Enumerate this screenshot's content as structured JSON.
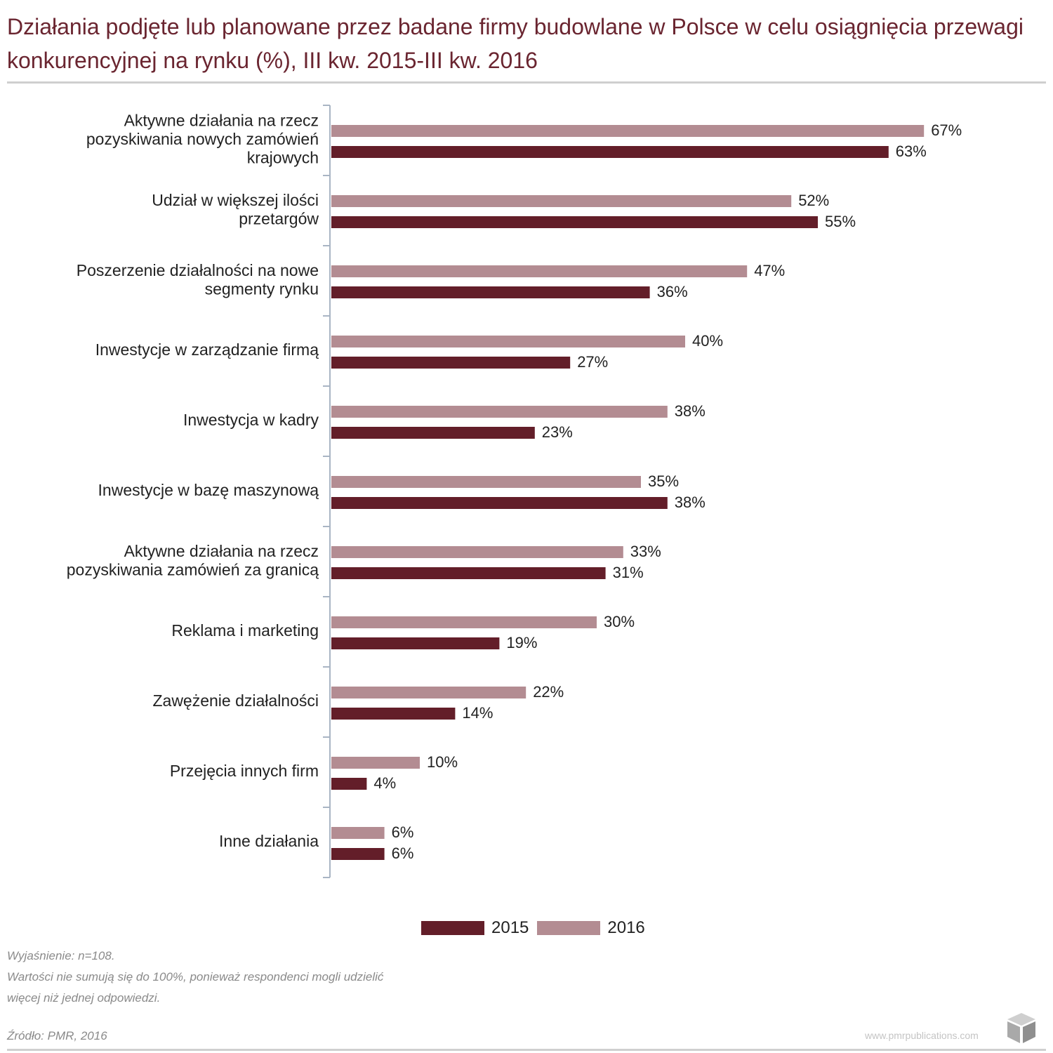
{
  "title": "Działania podjęte lub planowane przez badane firmy budowlane w Polsce w celu osiągnięcia przewagi konkurencyjnej na rynku (%), III kw. 2015-III kw. 2016",
  "colors": {
    "series_2015": "#631e29",
    "series_2016": "#b38c92",
    "title": "#6a2530",
    "axis": "#a9b5c4"
  },
  "chart_data": {
    "type": "bar",
    "orientation": "horizontal",
    "categories": [
      [
        "Aktywne działania na rzecz",
        "pozyskiwania nowych zamówień",
        "krajowych"
      ],
      [
        "Udział w większej ilości",
        "przetargów"
      ],
      [
        "Poszerzenie działalności na nowe",
        "segmenty rynku"
      ],
      [
        "Inwestycje w zarządzanie firmą"
      ],
      [
        "Inwestycja w kadry"
      ],
      [
        "Inwestycje w bazę maszynową"
      ],
      [
        "Aktywne działania na rzecz",
        "pozyskiwania zamówień za granicą"
      ],
      [
        "Reklama i marketing"
      ],
      [
        "Zawężenie działalności"
      ],
      [
        "Przejęcia innych firm"
      ],
      [
        "Inne działania"
      ]
    ],
    "series": [
      {
        "name": "2016",
        "values": [
          67,
          52,
          47,
          40,
          38,
          35,
          33,
          30,
          22,
          10,
          6
        ],
        "labels": [
          "67%",
          "52%",
          "47%",
          "40%",
          "38%",
          "35%",
          "33%",
          "30%",
          "22%",
          "10%",
          "6%"
        ]
      },
      {
        "name": "2015",
        "values": [
          63,
          55,
          36,
          27,
          23,
          38,
          31,
          19,
          14,
          4,
          6
        ],
        "labels": [
          "63%",
          "55%",
          "36%",
          "27%",
          "23%",
          "38%",
          "31%",
          "19%",
          "14%",
          "4%",
          "6%"
        ]
      }
    ],
    "data_labels": true,
    "grid": false,
    "legend_position": "bottom"
  },
  "legend": {
    "items": [
      "2015",
      "2016"
    ]
  },
  "notes": {
    "line1": "Wyjaśnienie: n=108.",
    "line2": "Wartości nie sumują się do 100%, ponieważ respondenci mogli udzielić",
    "line3": "więcej niż jednej odpowiedzi."
  },
  "source": "Źródło: PMR, 2016",
  "website": "www.pmrpublications.com",
  "logo_icon": "pmr-cube-logo"
}
